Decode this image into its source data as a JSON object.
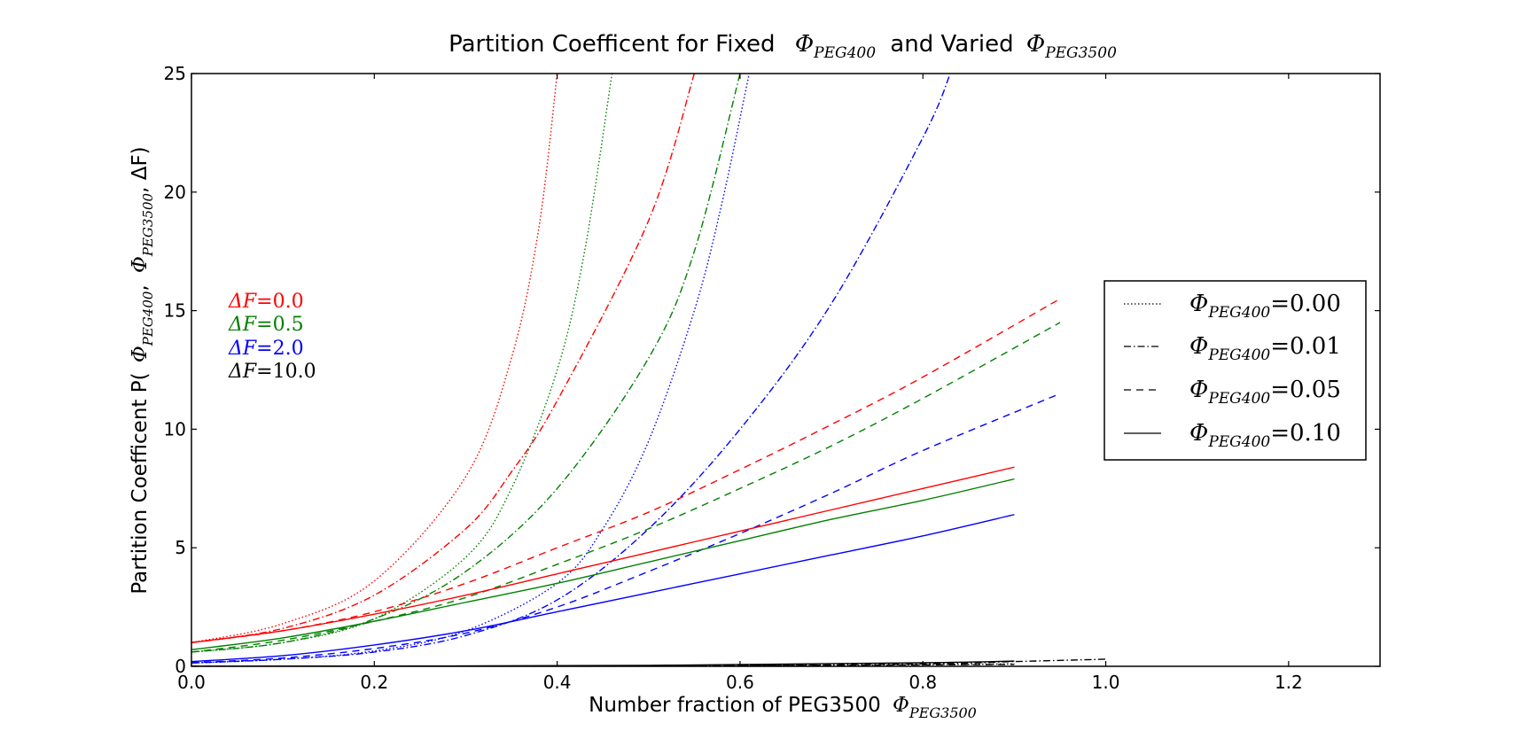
{
  "chart_data": {
    "type": "line",
    "title": {
      "prefix": "Partition Coefficent for Fixed",
      "phi1": "Φ",
      "phi1_sub": "PEG400",
      "middle": "and Varied",
      "phi2": "Φ",
      "phi2_sub": "PEG3500"
    },
    "xlabel": {
      "text": "Number fraction of PEG3500",
      "phi": "Φ",
      "phi_sub": "PEG3500"
    },
    "ylabel": {
      "text1": "Partition Coefficent  P(",
      "phi1": "Φ",
      "sub1": "PEG400",
      "sep": ",",
      "phi2": "Φ",
      "sub2": "PEG3500",
      "tail": ",  ΔF)"
    },
    "xlim": [
      0.0,
      1.3
    ],
    "ylim": [
      0,
      25
    ],
    "xticks": [
      "0.0",
      "0.2",
      "0.4",
      "0.6",
      "0.8",
      "1.0",
      "1.2"
    ],
    "xtick_values": [
      0.0,
      0.2,
      0.4,
      0.6,
      0.8,
      1.0,
      1.2
    ],
    "yticks": [
      "0",
      "5",
      "10",
      "15",
      "20",
      "25"
    ],
    "ytick_values": [
      0,
      5,
      10,
      15,
      20,
      25
    ],
    "deltaF_legend": [
      {
        "label": "ΔF",
        "eq": "=0.0",
        "color": "#ff0000"
      },
      {
        "label": "ΔF",
        "eq": "=0.5",
        "color": "#008000"
      },
      {
        "label": "ΔF",
        "eq": "=2.0",
        "color": "#0000ff"
      },
      {
        "label": "ΔF",
        "eq": "=10.0",
        "color": "#000000"
      }
    ],
    "style_legend": [
      {
        "phi": "Φ",
        "sub": "PEG400",
        "eq": "=0.00",
        "dash": "dotted"
      },
      {
        "phi": "Φ",
        "sub": "PEG400",
        "eq": "=0.01",
        "dash": "dashdot"
      },
      {
        "phi": "Φ",
        "sub": "PEG400",
        "eq": "=0.05",
        "dash": "dashed"
      },
      {
        "phi": "Φ",
        "sub": "PEG400",
        "eq": "=0.10",
        "dash": "solid"
      }
    ],
    "series": [
      {
        "deltaF": "0.0",
        "phi400": "0.00",
        "color": "#ff0000",
        "dash": "dotted",
        "x": [
          0.0,
          0.1,
          0.2,
          0.3,
          0.35,
          0.38,
          0.4
        ],
        "y": [
          1.0,
          1.8,
          3.6,
          8.0,
          13.0,
          18.5,
          25.0
        ]
      },
      {
        "deltaF": "0.5",
        "phi400": "0.00",
        "color": "#008000",
        "dash": "dotted",
        "x": [
          0.0,
          0.1,
          0.2,
          0.3,
          0.35,
          0.4,
          0.43,
          0.46
        ],
        "y": [
          0.6,
          1.0,
          2.0,
          4.6,
          7.5,
          12.5,
          17.5,
          25.0
        ]
      },
      {
        "deltaF": "2.0",
        "phi400": "0.00",
        "color": "#0000ff",
        "dash": "dotted",
        "x": [
          0.0,
          0.1,
          0.2,
          0.3,
          0.4,
          0.45,
          0.5,
          0.55,
          0.58,
          0.61
        ],
        "y": [
          0.14,
          0.3,
          0.65,
          1.5,
          3.5,
          5.8,
          9.5,
          15.0,
          19.5,
          25.0
        ]
      },
      {
        "deltaF": "10.0",
        "phi400": "0.00",
        "color": "#000000",
        "dash": "dotted",
        "x": [
          0.0,
          0.3,
          0.6,
          0.9
        ],
        "y": [
          0.0,
          0.0,
          0.02,
          0.1
        ]
      },
      {
        "deltaF": "0.0",
        "phi400": "0.01",
        "color": "#ff0000",
        "dash": "dashdot",
        "x": [
          0.0,
          0.1,
          0.2,
          0.3,
          0.35,
          0.4,
          0.5,
          0.55
        ],
        "y": [
          1.0,
          1.6,
          3.0,
          5.8,
          8.2,
          11.2,
          18.8,
          25.0
        ]
      },
      {
        "deltaF": "0.5",
        "phi400": "0.01",
        "color": "#008000",
        "dash": "dashdot",
        "x": [
          0.0,
          0.1,
          0.2,
          0.3,
          0.4,
          0.5,
          0.55,
          0.6
        ],
        "y": [
          0.6,
          1.0,
          2.0,
          4.0,
          7.5,
          13.0,
          17.5,
          25.0
        ]
      },
      {
        "deltaF": "2.0",
        "phi400": "0.01",
        "color": "#0000ff",
        "dash": "dashdot",
        "x": [
          0.0,
          0.1,
          0.2,
          0.3,
          0.4,
          0.5,
          0.6,
          0.7,
          0.8,
          0.83
        ],
        "y": [
          0.14,
          0.3,
          0.6,
          1.3,
          2.8,
          5.8,
          10.0,
          15.3,
          22.3,
          25.0
        ]
      },
      {
        "deltaF": "10.0",
        "phi400": "0.01",
        "color": "#000000",
        "dash": "dashdot",
        "x": [
          0.0,
          0.5,
          0.8,
          0.9,
          1.0
        ],
        "y": [
          0.0,
          0.02,
          0.1,
          0.2,
          0.3
        ]
      },
      {
        "deltaF": "0.0",
        "phi400": "0.05",
        "color": "#ff0000",
        "dash": "dashed",
        "x": [
          0.0,
          0.1,
          0.2,
          0.3,
          0.4,
          0.5,
          0.6,
          0.7,
          0.8,
          0.95
        ],
        "y": [
          1.0,
          1.5,
          2.3,
          3.5,
          5.0,
          6.5,
          8.3,
          10.2,
          12.2,
          15.5
        ]
      },
      {
        "deltaF": "0.5",
        "phi400": "0.05",
        "color": "#008000",
        "dash": "dashed",
        "x": [
          0.0,
          0.1,
          0.2,
          0.3,
          0.4,
          0.5,
          0.6,
          0.7,
          0.8,
          0.95
        ],
        "y": [
          0.6,
          1.1,
          1.9,
          2.9,
          4.3,
          5.8,
          7.5,
          9.3,
          11.3,
          14.5
        ]
      },
      {
        "deltaF": "2.0",
        "phi400": "0.05",
        "color": "#0000ff",
        "dash": "dashed",
        "x": [
          0.0,
          0.1,
          0.2,
          0.3,
          0.4,
          0.5,
          0.6,
          0.7,
          0.8,
          0.95
        ],
        "y": [
          0.15,
          0.35,
          0.75,
          1.4,
          2.5,
          4.0,
          5.6,
          7.3,
          9.1,
          11.5
        ]
      },
      {
        "deltaF": "10.0",
        "phi400": "0.05",
        "color": "#000000",
        "dash": "dashed",
        "x": [
          0.0,
          0.5,
          0.9
        ],
        "y": [
          0.0,
          0.02,
          0.08
        ]
      },
      {
        "deltaF": "0.0",
        "phi400": "0.10",
        "color": "#ff0000",
        "dash": "solid",
        "x": [
          0.0,
          0.1,
          0.2,
          0.3,
          0.4,
          0.5,
          0.6,
          0.7,
          0.8,
          0.9
        ],
        "y": [
          1.0,
          1.5,
          2.2,
          3.0,
          3.9,
          4.8,
          5.7,
          6.6,
          7.5,
          8.4
        ]
      },
      {
        "deltaF": "0.5",
        "phi400": "0.10",
        "color": "#008000",
        "dash": "solid",
        "x": [
          0.0,
          0.1,
          0.2,
          0.3,
          0.4,
          0.5,
          0.6,
          0.7,
          0.8,
          0.9
        ],
        "y": [
          0.7,
          1.2,
          1.9,
          2.7,
          3.5,
          4.4,
          5.3,
          6.2,
          7.0,
          7.9
        ]
      },
      {
        "deltaF": "2.0",
        "phi400": "0.10",
        "color": "#0000ff",
        "dash": "solid",
        "x": [
          0.0,
          0.1,
          0.2,
          0.3,
          0.4,
          0.5,
          0.6,
          0.7,
          0.8,
          0.9
        ],
        "y": [
          0.2,
          0.45,
          0.9,
          1.5,
          2.3,
          3.1,
          3.9,
          4.7,
          5.5,
          6.4
        ]
      },
      {
        "deltaF": "10.0",
        "phi400": "0.10",
        "color": "#000000",
        "dash": "solid",
        "x": [
          0.0,
          0.5,
          0.8,
          0.9
        ],
        "y": [
          0.0,
          0.04,
          0.15,
          0.22
        ]
      }
    ],
    "grid": false
  }
}
